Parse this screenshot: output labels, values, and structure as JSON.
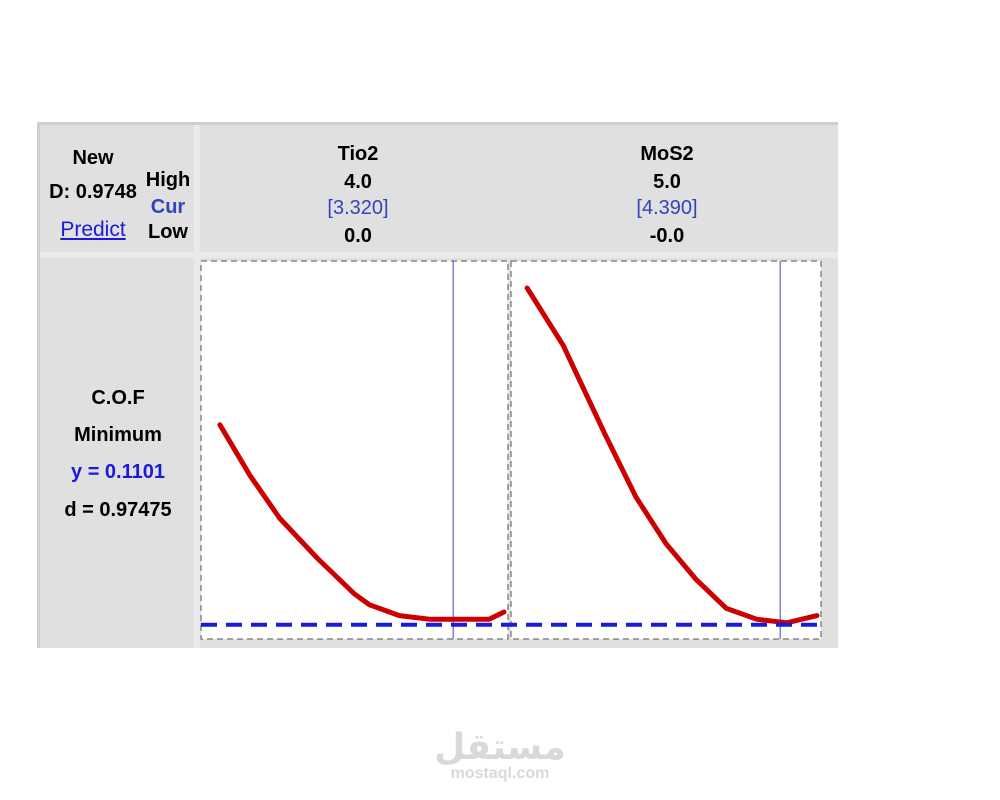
{
  "header": {
    "new_label": "New",
    "d_value": "D: 0.9748",
    "predict_link": "Predict",
    "high_label": "High",
    "cur_label": "Cur",
    "low_label": "Low"
  },
  "factors": [
    {
      "name": "Tio2",
      "high": "4.0",
      "cur": "[3.320]",
      "low": "0.0"
    },
    {
      "name": "MoS2",
      "high": "5.0",
      "cur": "[4.390]",
      "low": "-0.0"
    }
  ],
  "response": {
    "name": "C.O.F",
    "goal": "Minimum",
    "y_text": "y = 0.1101",
    "d_text": "d = 0.97475"
  },
  "colors": {
    "curve": "#cc0000",
    "current_line": "#4444cc",
    "target_line": "#1a1adb",
    "text_blue": "#3344bb"
  },
  "chart_data": {
    "type": "line",
    "ylim": [
      0,
      1
    ],
    "target_y": 0.02,
    "panels": [
      {
        "factor": "Tio2",
        "xlim": [
          0.0,
          4.0
        ],
        "current_x": 3.32,
        "x": [
          0.2,
          0.6,
          1.0,
          1.5,
          2.0,
          2.2,
          2.6,
          3.0,
          3.4,
          3.8,
          4.0
        ],
        "y": [
          0.57,
          0.43,
          0.31,
          0.2,
          0.1,
          0.07,
          0.04,
          0.03,
          0.03,
          0.03,
          0.05
        ]
      },
      {
        "factor": "MoS2",
        "xlim": [
          0.0,
          5.0
        ],
        "current_x": 4.39,
        "x": [
          0.2,
          0.8,
          1.5,
          2.0,
          2.5,
          3.0,
          3.5,
          4.0,
          4.5,
          5.0
        ],
        "y": [
          0.95,
          0.79,
          0.54,
          0.37,
          0.24,
          0.14,
          0.06,
          0.03,
          0.02,
          0.04
        ]
      }
    ]
  },
  "watermark": {
    "arabic": "مستقل",
    "domain": "mostaql.com"
  }
}
